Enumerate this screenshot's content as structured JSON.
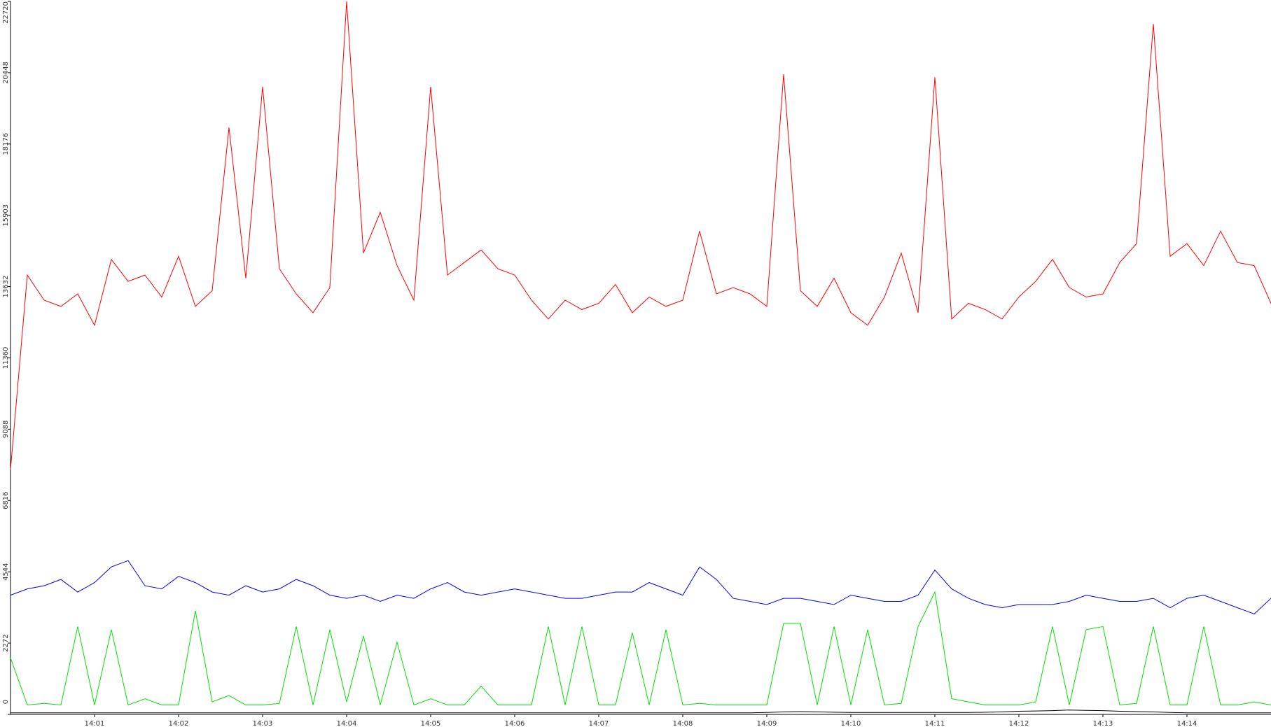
{
  "chart_data": {
    "type": "line",
    "x": [
      0,
      0.2,
      0.4,
      0.6,
      0.8,
      1,
      1.2,
      1.4,
      1.6,
      1.8,
      2,
      2.2,
      2.4,
      2.6,
      2.8,
      3,
      3.2,
      3.4,
      3.6,
      3.8,
      4,
      4.2,
      4.4,
      4.6,
      4.8,
      5,
      5.2,
      5.4,
      5.6,
      5.8,
      6,
      6.2,
      6.4,
      6.6,
      6.8,
      7,
      7.2,
      7.4,
      7.6,
      7.8,
      8,
      8.2,
      8.4,
      8.6,
      8.8,
      9,
      9.2,
      9.4,
      9.6,
      9.8,
      10,
      10.2,
      10.4,
      10.6,
      10.8,
      11,
      11.2,
      11.4,
      11.6,
      11.8,
      12,
      12.2,
      12.4,
      12.6,
      12.8,
      13,
      13.2,
      13.4,
      13.6,
      13.8,
      14,
      14.2,
      14.4,
      14.6,
      14.8,
      15
    ],
    "series": [
      {
        "color": "#ff0000",
        "values": [
          7800,
          14000,
          13200,
          13000,
          13400,
          12400,
          14500,
          13800,
          14000,
          13300,
          14600,
          13000,
          13500,
          18700,
          13900,
          20000,
          14200,
          13400,
          12800,
          13600,
          22720,
          14700,
          16000,
          14300,
          13200,
          20000,
          14000,
          14400,
          14800,
          14200,
          14000,
          13200,
          12600,
          13200,
          12900,
          13100,
          13700,
          12800,
          13300,
          13000,
          13200,
          15400,
          13400,
          13600,
          13400,
          13000,
          20400,
          13500,
          13000,
          13900,
          12800,
          12400,
          13300,
          14700,
          12800,
          20300,
          12600,
          13100,
          12900,
          12600,
          13300,
          13800,
          14500,
          13600,
          13300,
          13400,
          14400,
          15000,
          22000,
          14600,
          15000,
          14300,
          15400,
          14400,
          14300,
          13100
        ]
      },
      {
        "color": "#0000ff",
        "values": [
          3800,
          4000,
          4100,
          4300,
          3900,
          4200,
          4700,
          4900,
          4100,
          4000,
          4400,
          4200,
          3900,
          3800,
          4100,
          3900,
          4000,
          4300,
          4100,
          3800,
          3700,
          3800,
          3600,
          3800,
          3700,
          4000,
          4200,
          3900,
          3800,
          3900,
          4000,
          3900,
          3800,
          3700,
          3700,
          3800,
          3900,
          3900,
          4200,
          4000,
          3800,
          4700,
          4300,
          3700,
          3600,
          3500,
          3700,
          3700,
          3600,
          3500,
          3800,
          3700,
          3600,
          3600,
          3800,
          4600,
          4000,
          3700,
          3500,
          3400,
          3500,
          3500,
          3500,
          3600,
          3800,
          3700,
          3600,
          3600,
          3700,
          3400,
          3700,
          3800,
          3600,
          3400,
          3200,
          3700
        ]
      },
      {
        "color": "#00e000",
        "values": [
          1800,
          300,
          350,
          300,
          2800,
          300,
          2700,
          300,
          500,
          300,
          300,
          3300,
          400,
          600,
          300,
          300,
          350,
          2800,
          300,
          2700,
          400,
          2500,
          300,
          2300,
          300,
          500,
          300,
          300,
          900,
          300,
          300,
          300,
          2800,
          300,
          2800,
          300,
          300,
          2600,
          300,
          2700,
          300,
          350,
          300,
          300,
          300,
          300,
          2900,
          2900,
          300,
          2800,
          300,
          2700,
          300,
          350,
          2800,
          3900,
          500,
          400,
          300,
          300,
          300,
          400,
          2800,
          300,
          2700,
          2800,
          300,
          350,
          2800,
          300,
          300,
          2800,
          300,
          300,
          400,
          300
        ]
      },
      {
        "color": "#000000",
        "values": [
          50,
          50,
          50,
          50,
          50,
          50,
          50,
          50,
          50,
          50,
          50,
          50,
          50,
          50,
          50,
          50,
          50,
          50,
          50,
          50,
          50,
          50,
          50,
          50,
          50,
          50,
          50,
          50,
          50,
          50,
          50,
          50,
          50,
          50,
          50,
          50,
          50,
          50,
          50,
          50,
          50,
          50,
          50,
          50,
          50,
          60,
          80,
          90,
          80,
          70,
          60,
          60,
          60,
          60,
          60,
          60,
          60,
          60,
          70,
          80,
          100,
          110,
          120,
          140,
          130,
          120,
          100,
          90,
          80,
          60,
          50,
          50,
          50,
          50,
          50,
          50
        ]
      }
    ],
    "xlim": [
      0,
      15
    ],
    "xticks": [
      {
        "value": 1,
        "label": "14:01"
      },
      {
        "value": 2,
        "label": "14:02"
      },
      {
        "value": 3,
        "label": "14:03"
      },
      {
        "value": 4,
        "label": "14:04"
      },
      {
        "value": 5,
        "label": "14:05"
      },
      {
        "value": 6,
        "label": "14:06"
      },
      {
        "value": 7,
        "label": "14:07"
      },
      {
        "value": 8,
        "label": "14:08"
      },
      {
        "value": 9,
        "label": "14:09"
      },
      {
        "value": 10,
        "label": "14:10"
      },
      {
        "value": 11,
        "label": "14:11"
      },
      {
        "value": 12,
        "label": "14:12"
      },
      {
        "value": 13,
        "label": "14:13"
      },
      {
        "value": 14,
        "label": "14:14"
      }
    ],
    "ylim": [
      0,
      22720
    ],
    "yticks": [
      0,
      2272,
      4544,
      6816,
      9088,
      11360,
      13632,
      15903,
      18176,
      20448,
      22720
    ]
  }
}
